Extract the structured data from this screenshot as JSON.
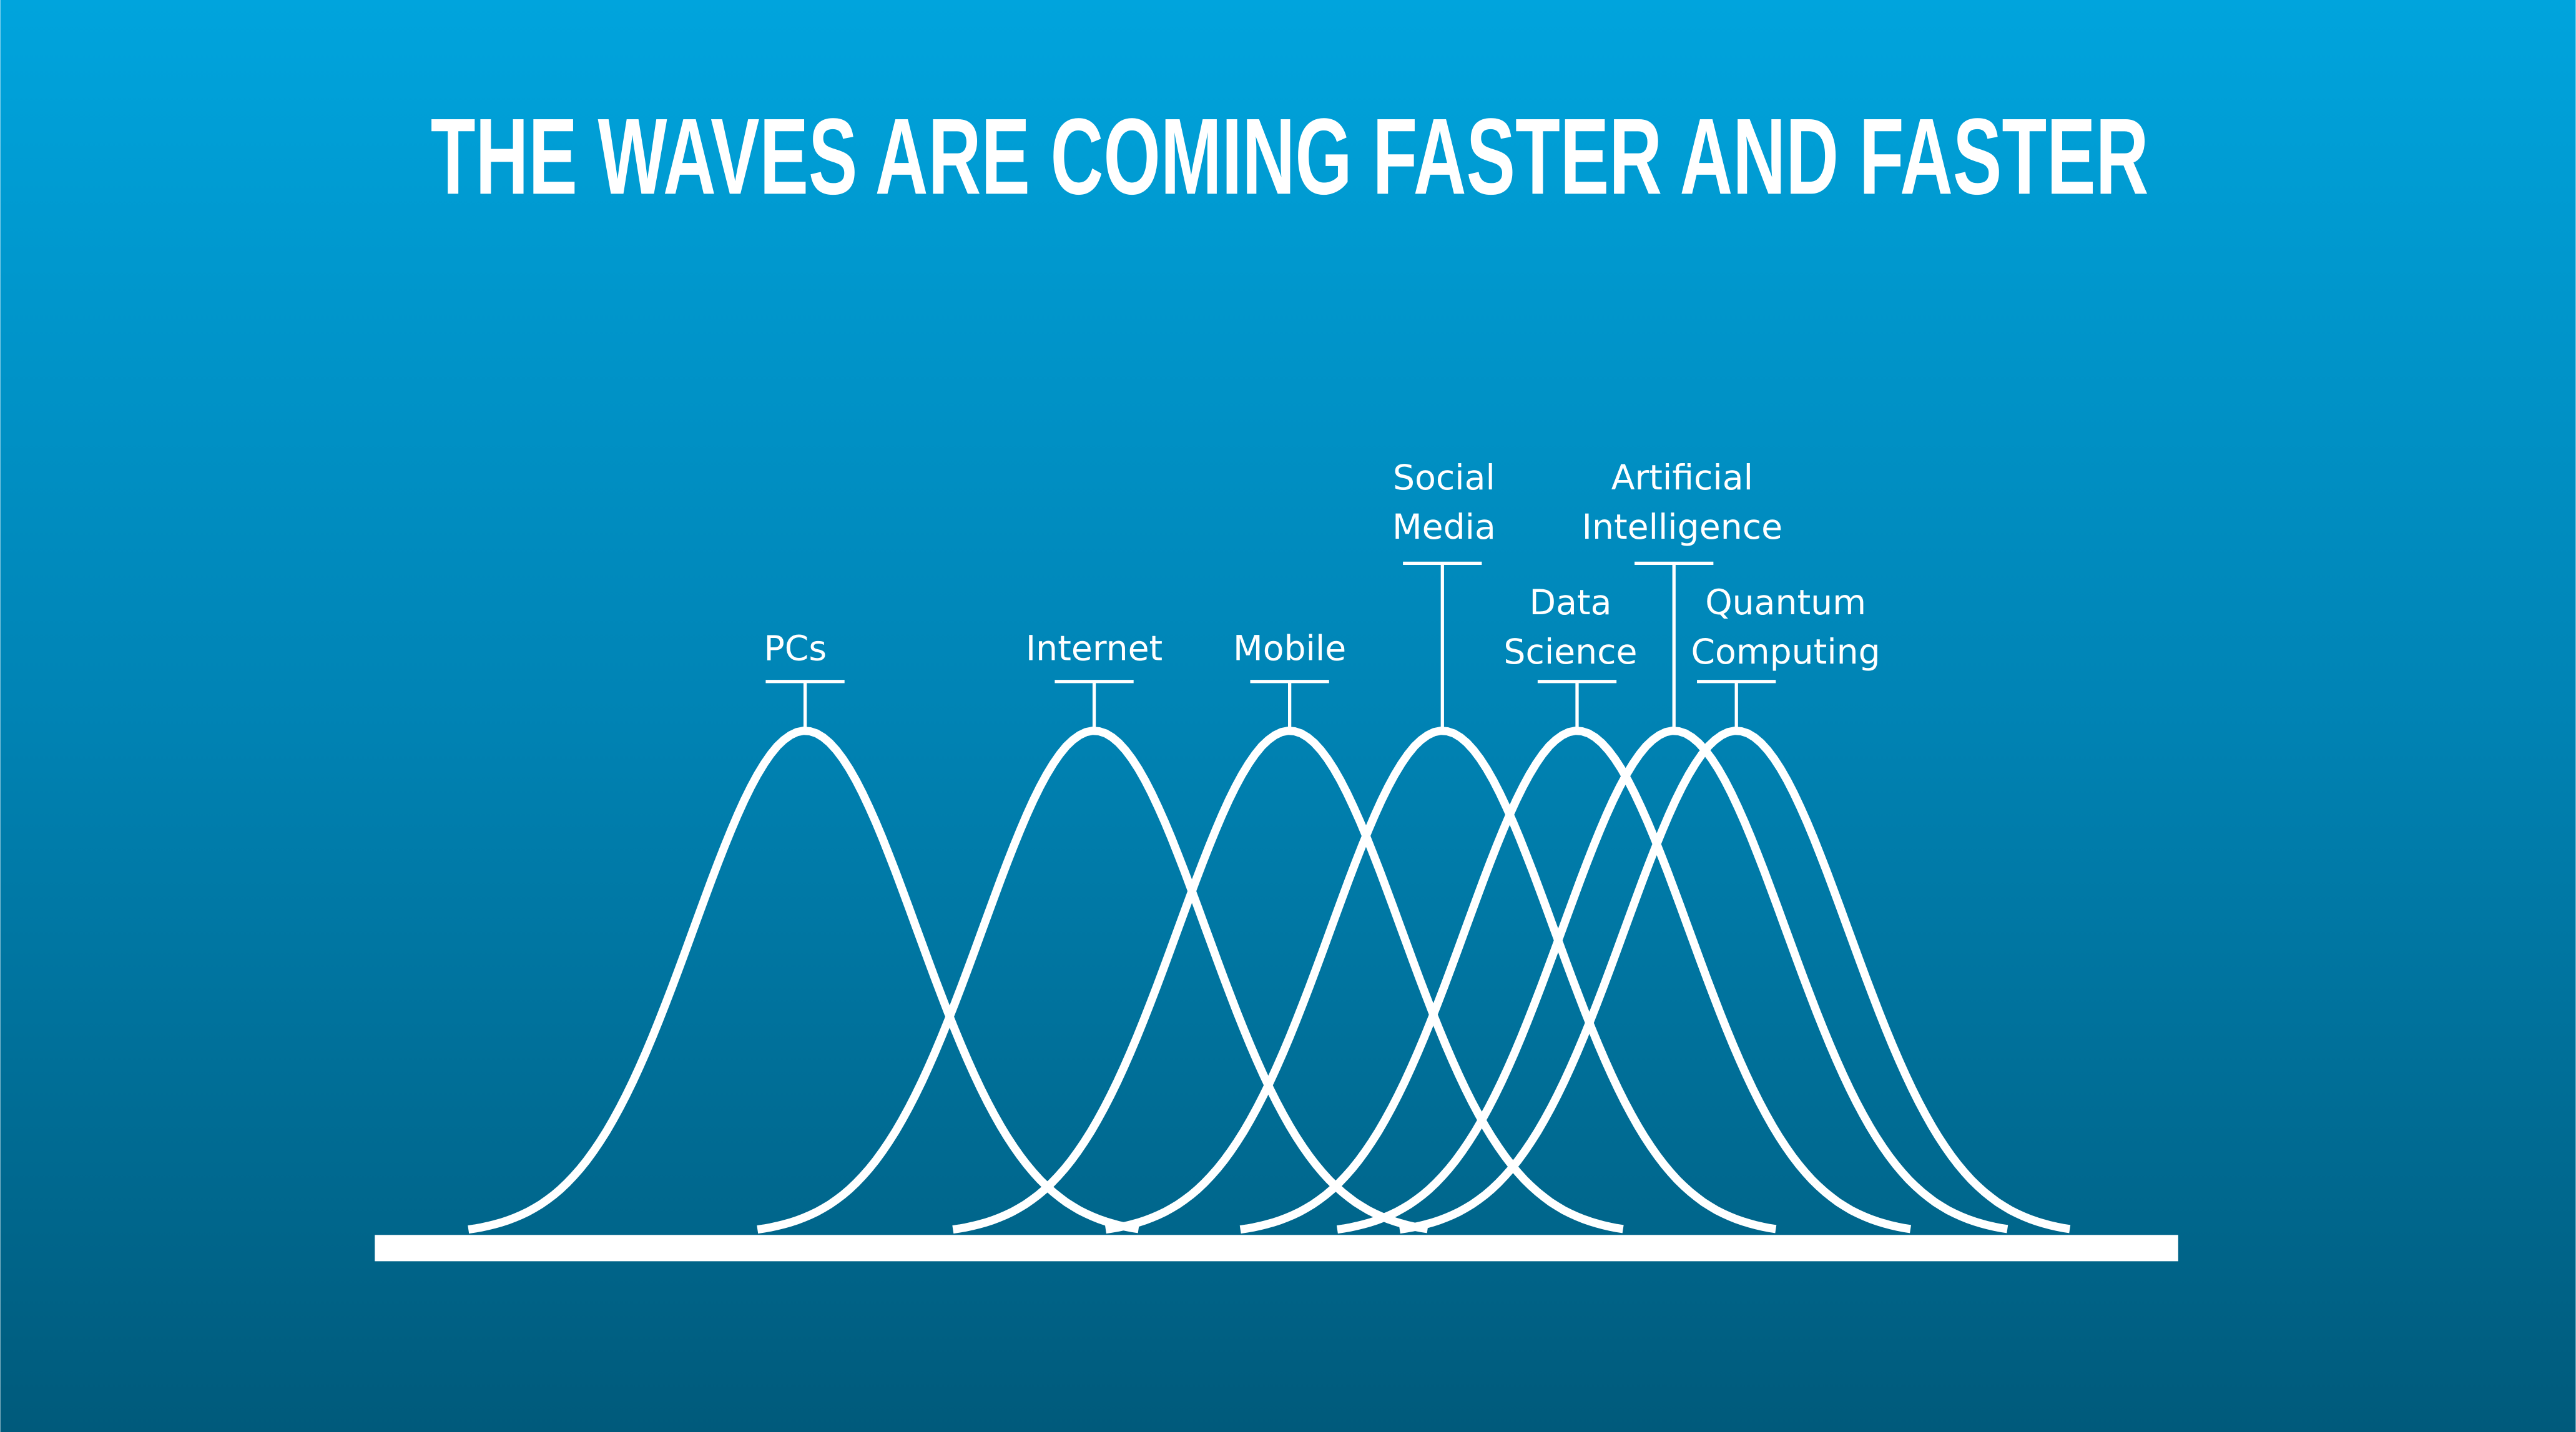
{
  "title": "THE WAVES ARE COMING FASTER AND FASTER",
  "waves": [
    {
      "label": [
        "PCs"
      ]
    },
    {
      "label": [
        "Internet"
      ]
    },
    {
      "label": [
        "Mobile"
      ]
    },
    {
      "label": [
        "Social",
        "Media"
      ]
    },
    {
      "label": [
        "Data",
        "Science"
      ]
    },
    {
      "label": [
        "Artificial",
        "Intelligence"
      ]
    },
    {
      "label": [
        "Quantum",
        "Computing"
      ]
    }
  ]
}
